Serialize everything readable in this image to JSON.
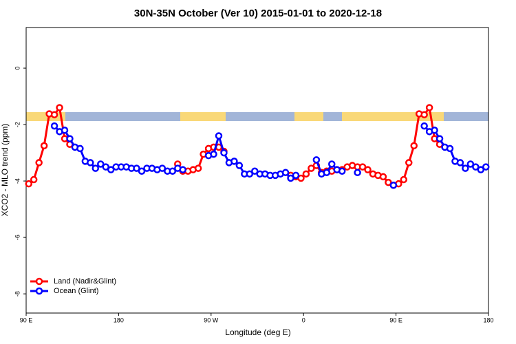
{
  "chart_data": {
    "type": "line",
    "title": "30N-35N October (Ver 10)   2015-01-01 to 2020-12-18",
    "x_label": "Longitude (deg E)",
    "y_label": "XCO2 - MLO trend (ppm)",
    "x": [
      92.5,
      97.5,
      102.5,
      107.5,
      112.5,
      117.5,
      122.5,
      127.5,
      132.5,
      137.5,
      142.5,
      147.5,
      152.5,
      157.5,
      162.5,
      167.5,
      172.5,
      177.5,
      182.5,
      187.5,
      192.5,
      197.5,
      202.5,
      207.5,
      212.5,
      217.5,
      222.5,
      227.5,
      232.5,
      237.5,
      242.5,
      247.5,
      252.5,
      257.5,
      262.5,
      267.5,
      272.5,
      277.5,
      282.5,
      287.5,
      292.5,
      297.5,
      302.5,
      307.5,
      312.5,
      317.5,
      322.5,
      327.5,
      332.5,
      337.5,
      342.5,
      347.5,
      352.5,
      357.5,
      362.5,
      367.5,
      372.5,
      377.5,
      382.5,
      387.5,
      392.5,
      397.5,
      402.5,
      407.5,
      412.5,
      417.5,
      422.5,
      427.5,
      432.5,
      437.5,
      442.5,
      447.5,
      452.5,
      457.5,
      462.5,
      467.5,
      472.5,
      477.5,
      482.5,
      487.5,
      492.5,
      497.5,
      502.5,
      507.5,
      512.5,
      517.5,
      522.5,
      527.5,
      532.5,
      537.5
    ],
    "series": [
      {
        "name": "Land (Nadir&Glint)",
        "color": "#ff0000",
        "values": [
          -4.1,
          -3.95,
          -3.35,
          -2.75,
          -1.62,
          -1.65,
          -1.4,
          -2.5,
          -2.7,
          null,
          null,
          null,
          null,
          null,
          null,
          null,
          null,
          null,
          null,
          null,
          null,
          null,
          null,
          null,
          null,
          null,
          null,
          null,
          null,
          -3.4,
          -3.65,
          -3.65,
          -3.6,
          -3.55,
          -3.05,
          -2.85,
          -2.8,
          -2.8,
          -2.95,
          null,
          null,
          null,
          null,
          null,
          null,
          null,
          null,
          null,
          null,
          null,
          null,
          -3.8,
          -3.85,
          -3.9,
          -3.75,
          -3.55,
          -3.45,
          -3.7,
          -3.65,
          -3.65,
          -3.6,
          -3.6,
          -3.5,
          -3.45,
          -3.5,
          -3.5,
          -3.6,
          -3.75,
          -3.8,
          -3.85,
          -4.05,
          -4.15,
          -4.1,
          -3.95,
          -3.35,
          -2.75,
          -1.62,
          -1.65,
          -1.4,
          -2.5,
          -2.7,
          null,
          null,
          null,
          null,
          null,
          null,
          null,
          null,
          null
        ]
      },
      {
        "name": "Ocean (Glint)",
        "color": "#0000ff",
        "values": [
          null,
          null,
          null,
          null,
          null,
          -2.05,
          -2.25,
          -2.2,
          -2.5,
          -2.8,
          -2.85,
          -3.3,
          -3.35,
          -3.55,
          -3.4,
          -3.5,
          -3.6,
          -3.5,
          -3.5,
          -3.5,
          -3.55,
          -3.55,
          -3.65,
          -3.55,
          -3.55,
          -3.6,
          -3.55,
          -3.65,
          -3.65,
          -3.55,
          -3.6,
          null,
          null,
          null,
          null,
          -3.1,
          -3.05,
          -2.4,
          -3.0,
          -3.35,
          -3.3,
          -3.45,
          -3.75,
          -3.75,
          -3.65,
          -3.75,
          -3.75,
          -3.8,
          -3.8,
          -3.75,
          -3.7,
          -3.9,
          -3.8,
          null,
          null,
          null,
          -3.25,
          -3.75,
          -3.7,
          -3.4,
          -3.6,
          -3.65,
          null,
          null,
          -3.7,
          null,
          null,
          null,
          null,
          null,
          null,
          -4.15,
          null,
          null,
          null,
          null,
          null,
          -2.05,
          -2.25,
          -2.2,
          -2.5,
          -2.8,
          -2.85,
          -3.3,
          -3.35,
          -3.55,
          -3.4,
          -3.5,
          -3.6,
          -3.5
        ]
      }
    ],
    "xlim": [
      90,
      540
    ],
    "xticks": [
      {
        "value": 90,
        "label": "90 E"
      },
      180,
      {
        "value": 270,
        "label": "90 W"
      },
      {
        "value": 360,
        "label": "0"
      },
      {
        "value": 450,
        "label": "90 E"
      },
      {
        "value": 540,
        "label": "180"
      }
    ],
    "ylim": [
      -8.68,
      1.44
    ],
    "yticks": [
      0,
      -2,
      -4,
      -6,
      -8
    ],
    "legend": "bottom-left"
  }
}
